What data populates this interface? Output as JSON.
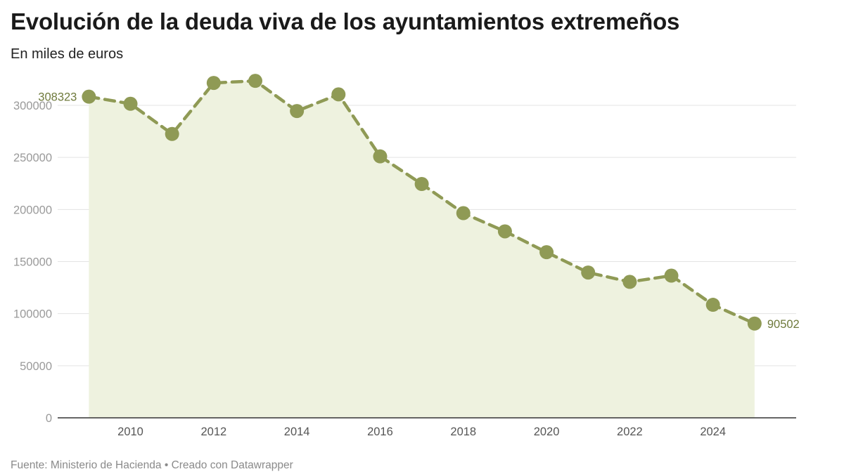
{
  "header": {
    "title": "Evolución de la deuda viva de los ayuntamientos extremeños",
    "subtitle": "En miles de euros"
  },
  "footer": {
    "source": "Fuente: Ministerio de Hacienda • Creado con Datawrapper"
  },
  "colors": {
    "line": "#8f9a55",
    "fill": "#eef2df",
    "grid": "#e3e3e3",
    "axis": "#333333"
  },
  "chart_data": {
    "type": "line",
    "title": "Evolución de la deuda viva de los ayuntamientos extremeños",
    "subtitle": "En miles de euros",
    "line_style": "dashed",
    "area_fill": true,
    "x": [
      2009,
      2010,
      2011,
      2012,
      2013,
      2014,
      2015,
      2016,
      2017,
      2018,
      2019,
      2020,
      2021,
      2022,
      2023,
      2024,
      2025
    ],
    "series": [
      {
        "values": [
          308323,
          301500,
          272500,
          321500,
          323500,
          294500,
          310500,
          251000,
          224500,
          196500,
          179000,
          159000,
          139500,
          130500,
          136500,
          108500,
          90502
        ]
      }
    ],
    "ylim": [
      0,
      300000
    ],
    "yticks": [
      0,
      50000,
      100000,
      150000,
      200000,
      250000,
      300000
    ],
    "xticks": [
      2010,
      2012,
      2014,
      2016,
      2018,
      2020,
      2022,
      2024
    ],
    "data_labels": [
      {
        "x": 2009,
        "text": "308323"
      },
      {
        "x": 2025,
        "text": "90502"
      }
    ],
    "grid": true
  }
}
